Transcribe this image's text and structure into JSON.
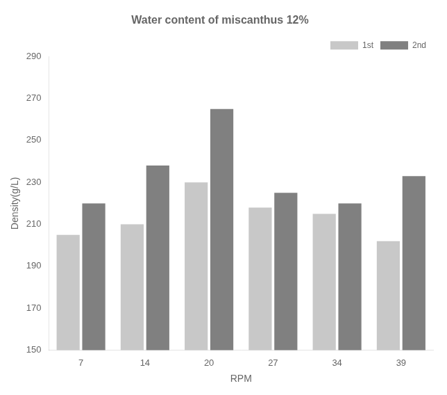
{
  "chart_data": {
    "type": "bar",
    "title": "Water content of miscanthus 12%",
    "xlabel": "RPM",
    "ylabel": "Density(g/L)",
    "categories": [
      7,
      14,
      20,
      27,
      34,
      39
    ],
    "series": [
      {
        "name": "1st",
        "color": "#c8c8c8",
        "values": [
          205,
          210,
          230,
          218,
          215,
          202
        ]
      },
      {
        "name": "2nd",
        "color": "#808080",
        "values": [
          220,
          238,
          265,
          225,
          220,
          233
        ]
      }
    ],
    "ylim": [
      150,
      290
    ],
    "yticks": [
      150,
      170,
      190,
      210,
      230,
      250,
      270,
      290
    ],
    "grid": false,
    "legend": "upper right"
  }
}
